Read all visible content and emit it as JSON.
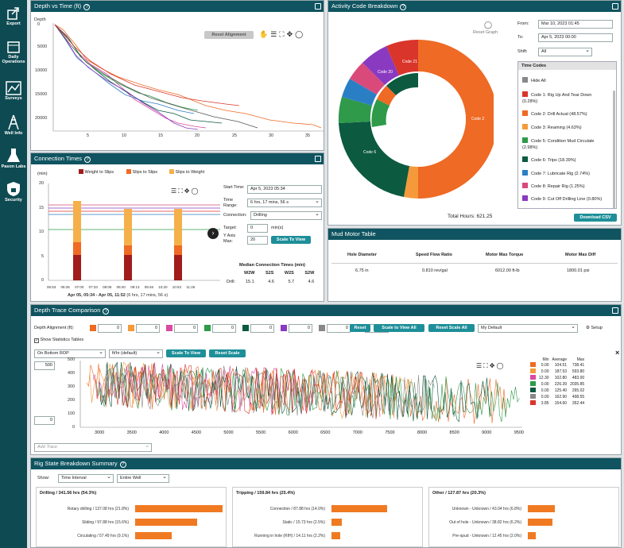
{
  "nav": [
    "Export",
    "Daily Operations",
    "Surveys",
    "Well Info",
    "Pason Labs",
    "Security"
  ],
  "depth_panel": {
    "title": "Depth vs Time (ft)",
    "reset": "Reset Alignment",
    "ylabel": "Depth",
    "yticks": [
      "0",
      "5000",
      "10000",
      "15000",
      "20000"
    ],
    "xticks": [
      "5",
      "10",
      "15",
      "20",
      "25",
      "30",
      "35"
    ]
  },
  "conn_panel": {
    "title": "Connection Times",
    "legend": [
      "Weight to Slips",
      "Slips to Slips",
      "Slips to Weight"
    ],
    "ylabel": "(min)",
    "yticks": [
      "20",
      "15",
      "10",
      "5",
      "0"
    ],
    "xticks": [
      "06:53",
      "06:26",
      "07:00",
      "07:33",
      "08:06",
      "08:40",
      "09:13",
      "09:46",
      "10:20",
      "10:53",
      "11:26"
    ],
    "range_label": "Apr 05, 05:34 - Apr 05, 11:52",
    "range_sub": "(6 hrs, 17 mins, 56 s)",
    "start_label": "Start Time:",
    "start_value": "Apr 5, 2023 05:34",
    "range_field_label": "Time Range:",
    "range_value": "6 hrs, 17 mins, 56 s",
    "connection_label": "Connection:",
    "connection_value": "Drilling",
    "target_label": "Target:",
    "target_value": "0",
    "target_unit": "min(s)",
    "yaxis_label": "Y Axis Max:",
    "yaxis_value": "20",
    "scale_btn": "Scale To View",
    "median_title": "Median Connection Times (min)",
    "median_cols": [
      "W2W",
      "S2S",
      "W2S",
      "S2W"
    ],
    "median_row_label": "Drill:",
    "median_values": [
      "15.1",
      "4.6",
      "5.7",
      "4.6"
    ]
  },
  "activity_panel": {
    "title": "Activity Code Breakdown",
    "reset": "Reset Graph",
    "from_label": "From:",
    "from_value": "Mar 10, 2023 01:45",
    "to_label": "To:",
    "to_value": "Apr 5, 2023 00:00",
    "shift_label": "Shift:",
    "shift_value": "All",
    "codes_title": "Time Codes",
    "hide_all": "Hide All",
    "codes": [
      {
        "label": "Code 1: Rig Up And Tear Down (0.28%)",
        "color": "#d9352a"
      },
      {
        "label": "Code 2: Drill Actual (48.57%)",
        "color": "#ee6a25"
      },
      {
        "label": "Code 3: Reaming (4.63%)",
        "color": "#f59a3a"
      },
      {
        "label": "Code 5: Condition Mud Circulate (2.98%)",
        "color": "#2e9a4a"
      },
      {
        "label": "Code 6: Trips (18.39%)",
        "color": "#0c5a40"
      },
      {
        "label": "Code 7: Lubricate Rig (2.74%)",
        "color": "#2a7fc4"
      },
      {
        "label": "Code 8: Repair Rig (1.25%)",
        "color": "#d94a7a"
      },
      {
        "label": "Code 9: Cut Off Drilling Line (0.80%)",
        "color": "#8a3ac0"
      }
    ],
    "total": "Total Hours: 621.25",
    "download": "Download CSV",
    "donut_labels": [
      "Code 21",
      "Code 20",
      "Code 2",
      "Code 6"
    ]
  },
  "mud_panel": {
    "title": "Mud Motor Table",
    "headers": [
      "Hole Diameter",
      "Speed Flow Ratio",
      "Motor Max Torque",
      "Motor Max Diff"
    ],
    "row": [
      "6.75 in",
      "0.810 rev/gal",
      "6012.00 ft-lb",
      "1800.01 psi"
    ]
  },
  "trace_panel": {
    "title": "Depth Trace Comparison",
    "align_label": "Depth Alignment (ft):",
    "align_values": [
      "0",
      "0",
      "0",
      "0",
      "0",
      "0",
      "0",
      "0"
    ],
    "reset": "Reset",
    "scale_all": "Scale to View All",
    "reset_all": "Reset Scale All",
    "default": "My Default",
    "setup": "Setup",
    "show_stats": "Show Statistics Tables",
    "trace_select": "On Bottom ROP",
    "unit_select": "ft/hr (default)",
    "scale_btn": "Scale To View",
    "reset_scale": "Reset Scale",
    "ymax": "500",
    "ymin": "0",
    "yticks": [
      "500",
      "400",
      "300",
      "200",
      "100",
      "0"
    ],
    "xticks": [
      "3000",
      "3500",
      "4000",
      "4500",
      "5000",
      "5500",
      "6000",
      "6500",
      "7000",
      "7500",
      "8000",
      "8500",
      "9000",
      "9500"
    ],
    "add_trace": "Add Trace",
    "stats_headers": [
      "Min",
      "Average",
      "Max"
    ],
    "stats": [
      {
        "c": "#ee6a25",
        "v": [
          "0.00",
          "104.51",
          "738.41"
        ]
      },
      {
        "c": "#f59a3a",
        "v": [
          "0.00",
          "187.53",
          "593.80"
        ]
      },
      {
        "c": "#d94aa0",
        "v": [
          "12.30",
          "102.80",
          "483.00"
        ]
      },
      {
        "c": "#2e9a4a",
        "v": [
          "0.00",
          "226.39",
          "2035.85"
        ]
      },
      {
        "c": "#0c5a40",
        "v": [
          "0.00",
          "125.40",
          "265.02"
        ]
      },
      {
        "c": "#888888",
        "v": [
          "0.00",
          "162.90",
          "498.55"
        ]
      },
      {
        "c": "#d9352a",
        "v": [
          "3.85",
          "154.60",
          "352.44"
        ]
      }
    ]
  },
  "rig_panel": {
    "title": "Rig State Breakdown Summary",
    "show_label": "Show:",
    "interval": "Time Interval",
    "scope": "Entire Well",
    "sections": [
      {
        "title": "Drilling / 341.56 hrs (54.3%)",
        "rows": [
          {
            "label": "Rotary drilling / 137.08 hrs (21.8%)",
            "v": 137.08
          },
          {
            "label": "Sliding / 97.88 hrs (15.6%)",
            "v": 97.88
          },
          {
            "label": "Circulating / 57.49 hrs (9.1%)",
            "v": 57.49
          }
        ]
      },
      {
        "title": "Tripping / 159.84 hrs (25.4%)",
        "rows": [
          {
            "label": "Connection / 87.88 hrs (14.0%)",
            "v": 87.88
          },
          {
            "label": "Static / 15.73 hrs (2.5%)",
            "v": 15.73
          },
          {
            "label": "Running in hole (RIH) / 14.11 hrs (2.2%)",
            "v": 14.11
          }
        ]
      },
      {
        "title": "Other / 127.87 hrs (20.3%)",
        "rows": [
          {
            "label": "Unknown - Unknown / 43.04 hrs (6.8%)",
            "v": 43.04
          },
          {
            "label": "Out of hole - Unknown / 38.82 hrs (6.2%)",
            "v": 38.82
          },
          {
            "label": "Pre-spud - Unknown / 12.45 hrs (2.0%)",
            "v": 12.45
          }
        ]
      }
    ]
  }
}
